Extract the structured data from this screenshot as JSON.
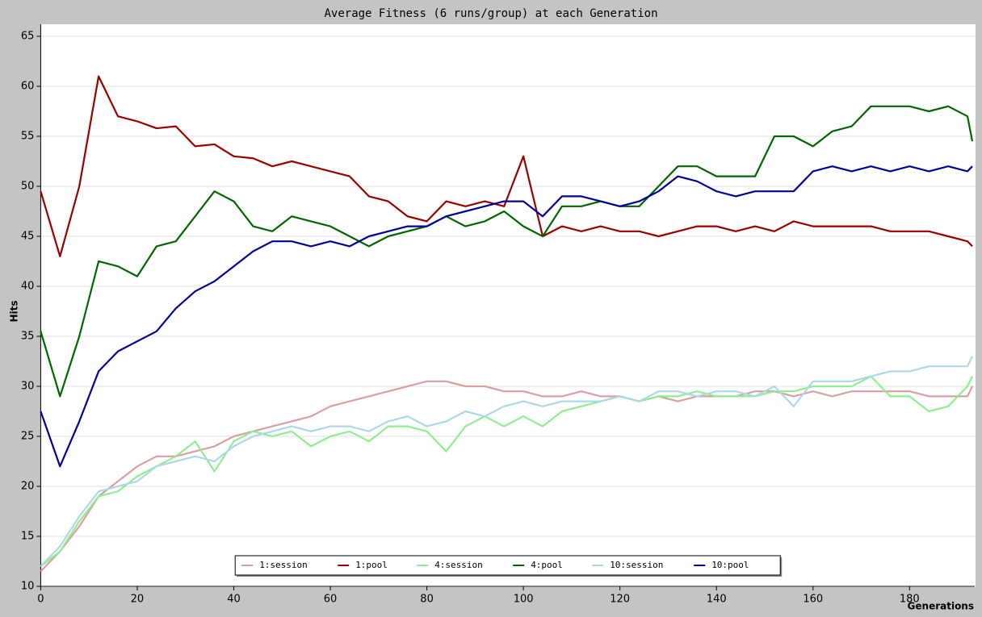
{
  "chart_data": {
    "type": "line",
    "title": "Average Fitness (6 runs/group) at each Generation",
    "x_label": "Generations",
    "y_label": "Hits",
    "x": [
      0,
      4,
      8,
      12,
      16,
      20,
      24,
      28,
      32,
      36,
      40,
      44,
      48,
      52,
      56,
      60,
      64,
      68,
      72,
      76,
      80,
      84,
      88,
      92,
      96,
      100,
      104,
      108,
      112,
      116,
      120,
      124,
      128,
      132,
      136,
      140,
      144,
      148,
      152,
      156,
      160,
      164,
      168,
      172,
      176,
      180,
      184,
      188,
      192,
      193
    ],
    "series": [
      {
        "name": "1:session",
        "color": "#d8a0a0",
        "values": [
          11.5,
          13.5,
          16,
          19,
          20.5,
          22,
          23,
          23,
          23.5,
          24,
          25,
          25.5,
          26,
          26.5,
          27,
          28,
          28.5,
          29,
          29.5,
          30,
          30.5,
          30.5,
          30,
          30,
          29.5,
          29.5,
          29,
          29,
          29.5,
          29,
          29,
          28.5,
          29,
          28.5,
          29,
          29,
          29,
          29.5,
          29.5,
          29,
          29.5,
          29,
          29.5,
          29.5,
          29.5,
          29.5,
          29,
          29,
          29,
          30
        ]
      },
      {
        "name": "1:pool",
        "color": "#990000",
        "values": [
          49.5,
          43,
          50,
          61,
          57,
          56.5,
          55.8,
          56,
          54,
          54.2,
          53,
          52.8,
          52,
          52.5,
          52,
          51.5,
          51,
          49,
          48.5,
          47,
          46.5,
          48.5,
          48,
          48.5,
          48,
          53,
          45,
          46,
          45.5,
          46,
          45.5,
          45.5,
          45,
          45.5,
          46,
          46,
          45.5,
          46,
          45.5,
          46.5,
          46,
          46,
          46,
          46,
          45.5,
          45.5,
          45.5,
          45,
          44.5,
          44
        ]
      },
      {
        "name": "4:session",
        "color": "#90ee90",
        "values": [
          12,
          13.5,
          16.5,
          19,
          19.5,
          21,
          22,
          23,
          24.5,
          21.5,
          24.5,
          25.5,
          25,
          25.5,
          24,
          25,
          25.5,
          24.5,
          26,
          26,
          25.5,
          23.5,
          26,
          27,
          26,
          27,
          26,
          27.5,
          28,
          28.5,
          29,
          28.5,
          29,
          29,
          29.5,
          29,
          29,
          29,
          29.5,
          29.5,
          30,
          30,
          30,
          31,
          29,
          29,
          27.5,
          28,
          30,
          31
        ]
      },
      {
        "name": "4:pool",
        "color": "#006600",
        "values": [
          35.5,
          29,
          35,
          42.5,
          42,
          41,
          44,
          44.5,
          47,
          49.5,
          48.5,
          46,
          45.5,
          47,
          46.5,
          46,
          45,
          44,
          45,
          45.5,
          46,
          47,
          46,
          46.5,
          47.5,
          46,
          45,
          48,
          48,
          48.5,
          48,
          48,
          50,
          52,
          52,
          51,
          51,
          51,
          55,
          55,
          54,
          55.5,
          56,
          58,
          58,
          58,
          57.5,
          58,
          57,
          54.5
        ]
      },
      {
        "name": "10:session",
        "color": "#add8e6",
        "values": [
          12,
          14,
          17,
          19.5,
          20,
          20.5,
          22,
          22.5,
          23,
          22.5,
          24,
          25,
          25.5,
          26,
          25.5,
          26,
          26,
          25.5,
          26.5,
          27,
          26,
          26.5,
          27.5,
          27,
          28,
          28.5,
          28,
          28.5,
          28.5,
          28.5,
          29,
          28.5,
          29.5,
          29.5,
          29,
          29.5,
          29.5,
          29,
          30,
          28,
          30.5,
          30.5,
          30.5,
          31,
          31.5,
          31.5,
          32,
          32,
          32,
          33
        ]
      },
      {
        "name": "10:pool",
        "color": "#000099",
        "values": [
          27.5,
          22,
          26.5,
          31.5,
          33.5,
          34.5,
          35.5,
          37.8,
          39.5,
          40.5,
          42,
          43.5,
          44.5,
          44.5,
          44,
          44.5,
          44,
          45,
          45.5,
          46,
          46,
          47,
          47.5,
          48,
          48.5,
          48.5,
          47,
          49,
          49,
          48.5,
          48,
          48.5,
          49.5,
          51,
          50.5,
          49.5,
          49,
          49.5,
          49.5,
          49.5,
          51.5,
          52,
          51.5,
          52,
          51.5,
          52,
          51.5,
          52,
          51.5,
          52
        ]
      }
    ],
    "xlim": [
      0,
      193.5
    ],
    "ylim": [
      10,
      65
    ],
    "xticks": [
      0,
      20,
      40,
      60,
      80,
      100,
      120,
      140,
      160,
      180
    ],
    "yticks": [
      10,
      15,
      20,
      25,
      30,
      35,
      40,
      45,
      50,
      55,
      60,
      65
    ],
    "grid": true,
    "legend": "bottom"
  }
}
